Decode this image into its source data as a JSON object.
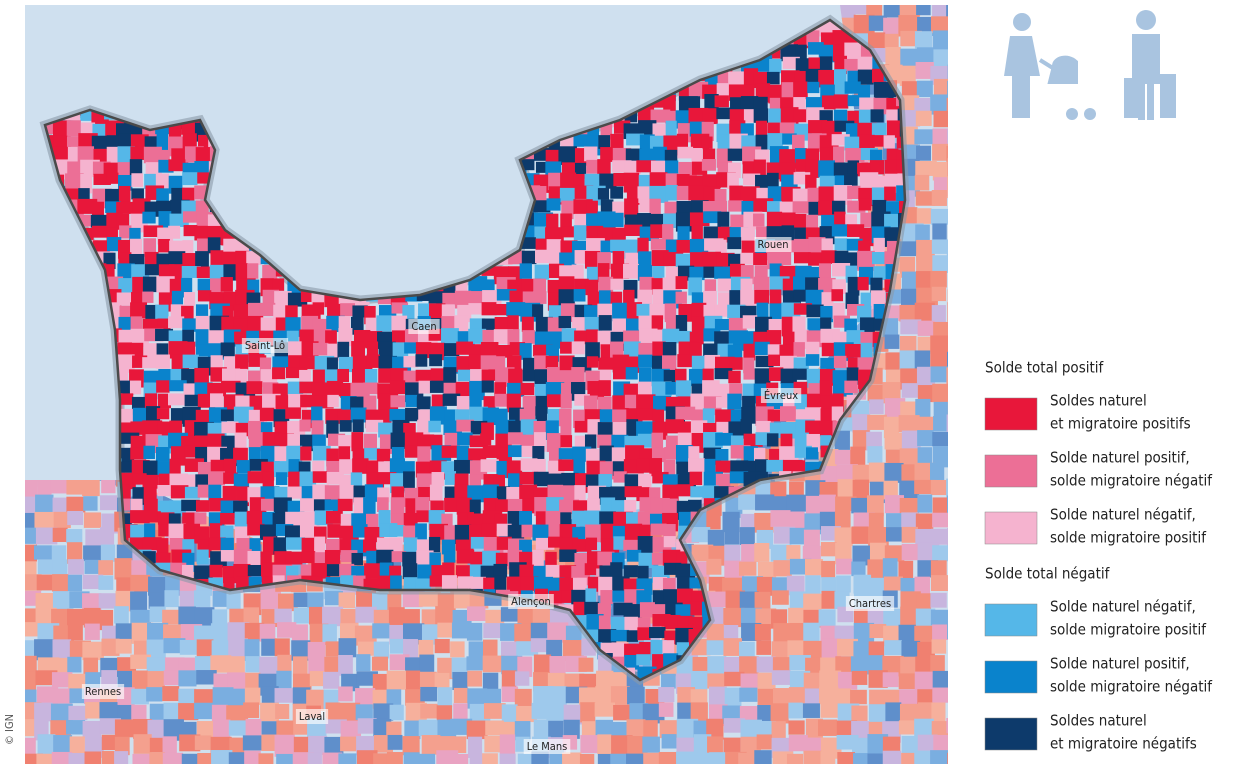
{
  "map": {
    "cities": [
      "Rouen",
      "Saint-Lô",
      "Caen",
      "Évreux",
      "Alençon",
      "Chartres",
      "Rennes",
      "Laval",
      "Le Mans"
    ]
  },
  "legend": {
    "groups": [
      {
        "title": "Solde total positif",
        "items": [
          {
            "lines": [
              "Soldes naturel",
              "et migratoire positifs"
            ],
            "color": "#e8173a"
          },
          {
            "lines": [
              "Solde naturel positif,",
              "solde migratoire négatif"
            ],
            "color": "#ec6f96"
          },
          {
            "lines": [
              "Solde naturel négatif,",
              "solde migratoire positif"
            ],
            "color": "#f5b3cf"
          }
        ]
      },
      {
        "title": "Solde total négatif",
        "items": [
          {
            "lines": [
              "Solde naturel négatif,",
              "solde migratoire positif"
            ],
            "color": "#55b7e8"
          },
          {
            "lines": [
              "Solde naturel positif,",
              "solde migratoire négatif"
            ],
            "color": "#0a83cc"
          },
          {
            "lines": [
              "Soldes naturel",
              "et migratoire négatifs"
            ],
            "color": "#0d3a6b"
          }
        ]
      }
    ]
  },
  "credit": "© IGN"
}
